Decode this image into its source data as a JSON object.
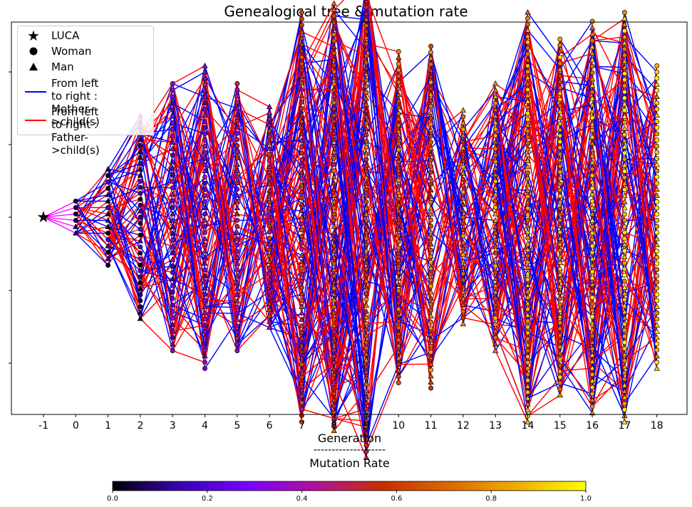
{
  "chart_data": {
    "type": "scatter",
    "title": "Genealogical tree & mutation rate",
    "xlabel_lines": [
      "Generation",
      "--------------------",
      "Mutation Rate"
    ],
    "x_ticks": [
      "-1",
      "0",
      "1",
      "2",
      "3",
      "4",
      "5",
      "6",
      "7",
      "8",
      "9",
      "10",
      "11",
      "12",
      "13",
      "14",
      "15",
      "16",
      "17",
      "18"
    ],
    "xlim": [
      -2,
      19
    ],
    "grid": false,
    "legend_position": "top-left",
    "legend": [
      {
        "label": "LUCA",
        "marker": "star",
        "color": "#000000"
      },
      {
        "label": "Woman",
        "marker": "circle",
        "color": "#000000"
      },
      {
        "label": "Man",
        "marker": "triangle",
        "color": "#000000"
      },
      {
        "label": "From left to right :\nMother->child(s)",
        "marker": "line",
        "color": "#0000ff"
      },
      {
        "label": "From left to right :\nFather->child(s)",
        "marker": "line",
        "color": "#ff0000"
      }
    ],
    "generations": [
      {
        "gen": -1,
        "count": 1,
        "spread": 0,
        "mut_base": 0.0
      },
      {
        "gen": 0,
        "count": 6,
        "spread": 0.09,
        "mut_base": 0.0
      },
      {
        "gen": 1,
        "count": 16,
        "spread": 0.27,
        "mut_base": 0.02
      },
      {
        "gen": 2,
        "count": 35,
        "spread": 0.57,
        "mut_base": 0.1
      },
      {
        "gen": 3,
        "count": 42,
        "spread": 0.75,
        "mut_base": 0.25
      },
      {
        "gen": 4,
        "count": 50,
        "spread": 0.85,
        "mut_base": 0.3
      },
      {
        "gen": 5,
        "count": 44,
        "spread": 0.75,
        "mut_base": 0.4
      },
      {
        "gen": 6,
        "count": 38,
        "spread": 0.62,
        "mut_base": 0.5
      },
      {
        "gen": 7,
        "count": 65,
        "spread": 1.15,
        "mut_base": 0.55
      },
      {
        "gen": 8,
        "count": 70,
        "spread": 1.2,
        "mut_base": 0.6
      },
      {
        "gen": 9,
        "count": 80,
        "spread": 1.35,
        "mut_base": 0.65
      },
      {
        "gen": 10,
        "count": 55,
        "spread": 0.93,
        "mut_base": 0.65
      },
      {
        "gen": 11,
        "count": 58,
        "spread": 0.96,
        "mut_base": 0.7
      },
      {
        "gen": 12,
        "count": 35,
        "spread": 0.6,
        "mut_base": 0.7
      },
      {
        "gen": 13,
        "count": 42,
        "spread": 0.75,
        "mut_base": 0.75
      },
      {
        "gen": 14,
        "count": 70,
        "spread": 1.15,
        "mut_base": 0.8
      },
      {
        "gen": 15,
        "count": 60,
        "spread": 1.0,
        "mut_base": 0.8
      },
      {
        "gen": 16,
        "count": 62,
        "spread": 1.1,
        "mut_base": 0.85
      },
      {
        "gen": 17,
        "count": 68,
        "spread": 1.15,
        "mut_base": 0.9
      },
      {
        "gen": 18,
        "count": 50,
        "spread": 0.85,
        "mut_base": 0.9
      }
    ],
    "edge_colors": {
      "mother": "#0000ff",
      "father": "#ff0000",
      "luca": "#ff00ff"
    },
    "colorbar": {
      "colormap": "gnuplot",
      "range": [
        0.0,
        1.0
      ],
      "ticks": [
        "0.0",
        "0.2",
        "0.4",
        "0.6",
        "0.8",
        "1.0"
      ],
      "stops": [
        "#000000",
        "#3a00b4",
        "#7800ff",
        "#b2129a",
        "#c53000",
        "#dc6a00",
        "#efb000",
        "#ffff00"
      ]
    }
  }
}
